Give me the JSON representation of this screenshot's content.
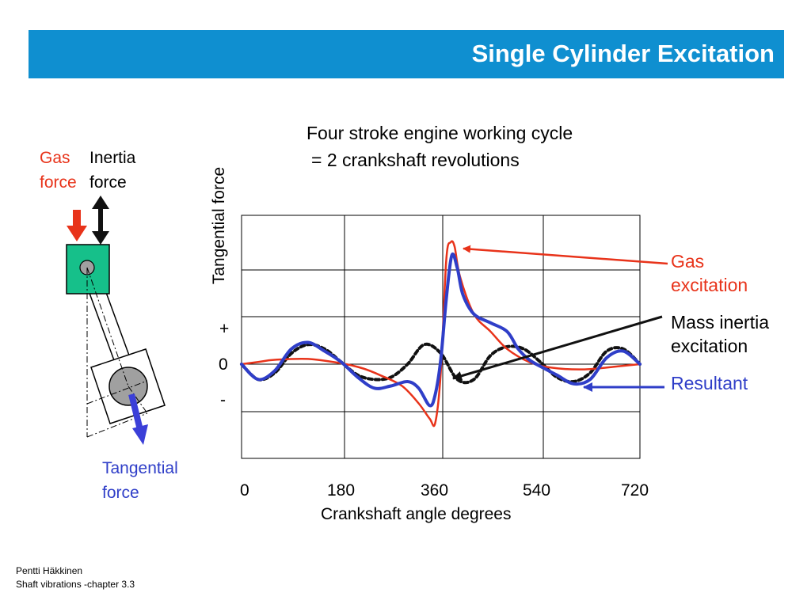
{
  "slide": {
    "title": "Single Cylinder Excitation",
    "subtitle_line1": "Four stroke engine working cycle",
    "subtitle_line2": "=  2 crankshaft revolutions",
    "footer_author": "Pentti Häkkinen",
    "footer_chapter": "Shaft vibrations  -chapter 3.3"
  },
  "mechanism": {
    "gas_force_line1": "Gas",
    "gas_force_line2": "force",
    "inertia_force_line1": "Inertia",
    "inertia_force_line2": "force",
    "tangential_force_line1": "Tangential",
    "tangential_force_line2": "force"
  },
  "colors": {
    "title_bar": "#0f8fd0",
    "gas": "#e8331a",
    "resultant": "#2f3ec8",
    "inertia": "#111111",
    "piston": "#16c08a",
    "crank_pin": "#a0a0a0"
  },
  "chart_data": {
    "type": "line",
    "ylabel": "Tangential force",
    "xlabel": "Crankshaft angle degrees",
    "xlim": [
      0,
      720
    ],
    "x_ticks": [
      "0",
      "180",
      "360",
      "540",
      "720"
    ],
    "y_ticks": [
      "+",
      "0",
      "-"
    ],
    "grid": true,
    "series": [
      {
        "name": "Gas excitation",
        "x": [
          0,
          30,
          60,
          120,
          180,
          220,
          250,
          290,
          320,
          340,
          350,
          360,
          370,
          378,
          385,
          395,
          420,
          450,
          480,
          520,
          560,
          620,
          680,
          720
        ],
        "y": [
          0,
          0.05,
          0.1,
          0.12,
          0.02,
          -0.1,
          -0.25,
          -0.5,
          -0.9,
          -1.25,
          -1.35,
          -0.2,
          2.4,
          2.8,
          2.7,
          2.0,
          1.15,
          0.75,
          0.35,
          0.05,
          -0.08,
          -0.12,
          -0.05,
          0
        ]
      },
      {
        "name": "Mass inertia excitation",
        "x": [
          0,
          30,
          60,
          90,
          120,
          150,
          180,
          210,
          240,
          270,
          300,
          330,
          360,
          390,
          420,
          450,
          480,
          510,
          540,
          570,
          600,
          630,
          660,
          690,
          720
        ],
        "y": [
          0,
          -0.35,
          -0.2,
          0.25,
          0.45,
          0.35,
          0.05,
          -0.25,
          -0.35,
          -0.3,
          0,
          0.45,
          0.25,
          -0.35,
          -0.35,
          0.2,
          0.4,
          0.35,
          0.05,
          -0.3,
          -0.4,
          -0.2,
          0.3,
          0.35,
          0
        ]
      },
      {
        "name": "Resultant",
        "x": [
          0,
          30,
          60,
          90,
          120,
          150,
          180,
          210,
          240,
          270,
          300,
          320,
          340,
          350,
          360,
          370,
          380,
          390,
          400,
          420,
          450,
          480,
          500,
          520,
          540,
          570,
          600,
          630,
          660,
          690,
          720
        ],
        "y": [
          0,
          -0.35,
          -0.15,
          0.35,
          0.5,
          0.3,
          0.05,
          -0.3,
          -0.55,
          -0.5,
          -0.4,
          -0.55,
          -0.95,
          -0.7,
          0.1,
          1.5,
          2.5,
          2.2,
          1.6,
          1.15,
          0.95,
          0.75,
          0.35,
          0.1,
          -0.05,
          -0.25,
          -0.45,
          -0.35,
          0.15,
          0.3,
          0
        ]
      }
    ]
  },
  "legend": {
    "gas_line1": "Gas",
    "gas_line2": "excitation",
    "inertia_line1": "Mass inertia",
    "inertia_line2": "excitation",
    "resultant": "Resultant"
  }
}
